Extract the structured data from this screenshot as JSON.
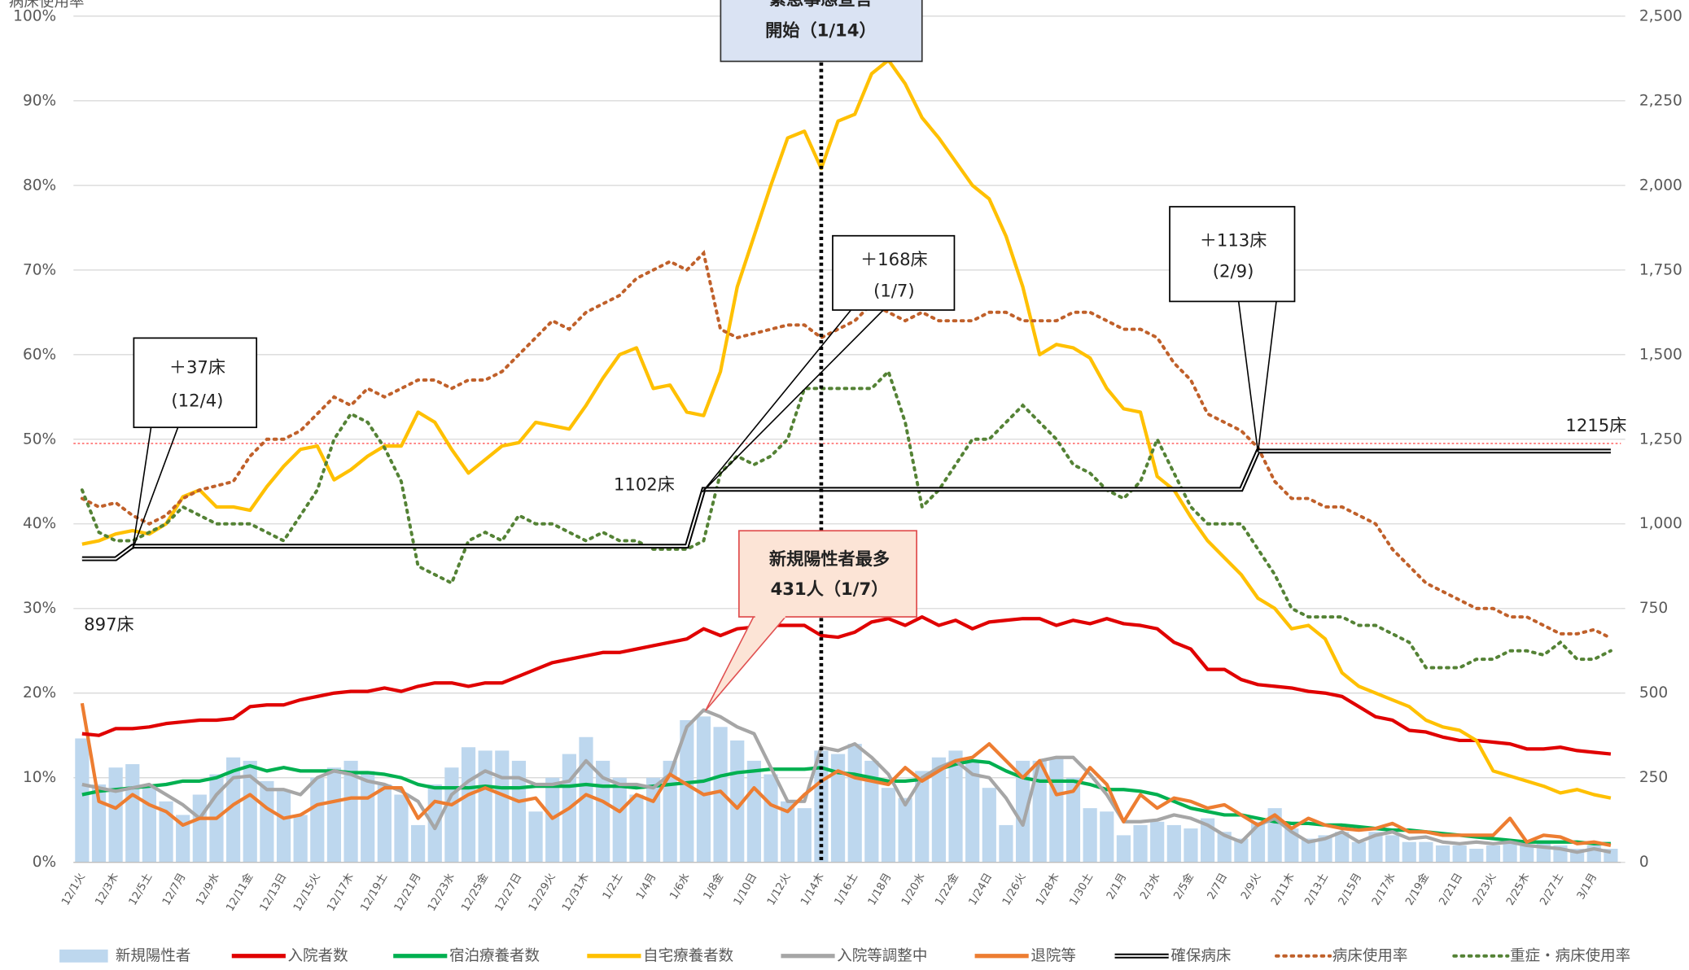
{
  "chart_data": {
    "type": "combo",
    "y_title": "病床使用率",
    "categories": [
      "12/1火",
      null,
      "12/3木",
      null,
      "12/5土",
      null,
      "12/7月",
      null,
      "12/9水",
      null,
      "12/11金",
      null,
      "12/13日",
      null,
      "12/15火",
      null,
      "12/17木",
      null,
      "12/19土",
      null,
      "12/21月",
      null,
      "12/23水",
      null,
      "12/25金",
      null,
      "12/27日",
      null,
      "12/29火",
      null,
      "12/31木",
      null,
      "1/2土",
      null,
      "1/4月",
      null,
      "1/6水",
      null,
      "1/8金",
      null,
      "1/10日",
      null,
      "1/12火",
      null,
      "1/14木",
      null,
      "1/16土",
      null,
      "1/18月",
      null,
      "1/20水",
      null,
      "1/22金",
      null,
      "1/24日",
      null,
      "1/26火",
      null,
      "1/28木",
      null,
      "1/30土",
      null,
      "2/1月",
      null,
      "2/3水",
      null,
      "2/5金",
      null,
      "2/7日",
      null,
      "2/9火",
      null,
      "2/11木",
      null,
      "2/13土",
      null,
      "2/15月",
      null,
      "2/17水",
      null,
      "2/19金",
      null,
      "2/21日",
      null,
      "2/23火",
      null,
      "2/25木",
      null,
      "2/27土",
      null,
      "3/1月",
      null
    ],
    "ylim": [
      0,
      100
    ],
    "yticks": [
      {
        "value": 0,
        "label": "0%"
      },
      {
        "value": 10,
        "label": "10%"
      },
      {
        "value": 20,
        "label": "20%"
      },
      {
        "value": 30,
        "label": "30%"
      },
      {
        "value": 40,
        "label": "40%"
      },
      {
        "value": 50,
        "label": "50%"
      },
      {
        "value": 60,
        "label": "60%"
      },
      {
        "value": 70,
        "label": "70%"
      },
      {
        "value": 80,
        "label": "80%"
      },
      {
        "value": 90,
        "label": "90%"
      },
      {
        "value": 100,
        "label": "100%"
      }
    ],
    "y2lim": [
      0,
      2500
    ],
    "y2ticks": [
      0,
      250,
      500,
      750,
      {
        "value": 1000,
        "label": "1,000"
      },
      {
        "value": 1250,
        "label": "1,250"
      },
      {
        "value": 1500,
        "label": "1,500"
      },
      {
        "value": 1750,
        "label": "1,750"
      },
      {
        "value": 2000,
        "label": "2,000"
      },
      {
        "value": 2250,
        "label": "2,250"
      },
      {
        "value": 2500,
        "label": "2,500"
      }
    ],
    "grid": true,
    "reference_line": {
      "value": 49.5,
      "color": "#ff5050"
    },
    "series": [
      {
        "name": "新規陽性者",
        "type": "bar",
        "axis": "y2",
        "color": "#bdd7ee",
        "values": [
          366,
          230,
          280,
          290,
          230,
          180,
          140,
          200,
          260,
          310,
          300,
          240,
          210,
          140,
          250,
          280,
          300,
          270,
          230,
          200,
          110,
          230,
          280,
          340,
          330,
          330,
          300,
          150,
          250,
          320,
          370,
          300,
          250,
          200,
          250,
          300,
          420,
          431,
          400,
          360,
          300,
          260,
          180,
          160,
          330,
          320,
          350,
          300,
          220,
          190,
          270,
          310,
          330,
          300,
          220,
          110,
          300,
          300,
          310,
          250,
          160,
          150,
          80,
          110,
          120,
          110,
          100,
          130,
          90,
          70,
          120,
          160,
          100,
          70,
          80,
          90,
          60,
          90,
          80,
          60,
          60,
          50,
          50,
          40,
          50,
          60,
          50,
          60,
          50,
          40,
          50,
          40
        ]
      },
      {
        "name": "入院者数",
        "type": "line",
        "axis": "y2",
        "color": "#e00000",
        "values": [
          380,
          375,
          395,
          395,
          400,
          410,
          415,
          420,
          420,
          425,
          460,
          465,
          465,
          480,
          490,
          500,
          505,
          505,
          515,
          505,
          520,
          530,
          530,
          520,
          530,
          530,
          550,
          570,
          590,
          600,
          610,
          620,
          620,
          630,
          640,
          650,
          660,
          690,
          670,
          690,
          695,
          700,
          700,
          700,
          670,
          665,
          680,
          710,
          720,
          700,
          725,
          700,
          715,
          690,
          710,
          715,
          720,
          720,
          700,
          715,
          705,
          720,
          705,
          700,
          690,
          650,
          630,
          570,
          570,
          540,
          525,
          520,
          515,
          505,
          500,
          490,
          460,
          430,
          420,
          390,
          385,
          370,
          360,
          360,
          355,
          350,
          335,
          335,
          340,
          330,
          325,
          320
        ]
      },
      {
        "name": "宿泊療養者数",
        "type": "line",
        "axis": "y2",
        "color": "#00b050",
        "values": [
          200,
          210,
          215,
          220,
          225,
          230,
          240,
          240,
          250,
          270,
          285,
          270,
          280,
          270,
          270,
          270,
          265,
          265,
          260,
          250,
          230,
          220,
          220,
          220,
          225,
          220,
          220,
          225,
          225,
          225,
          230,
          225,
          225,
          220,
          225,
          230,
          235,
          240,
          255,
          265,
          270,
          275,
          275,
          275,
          280,
          265,
          260,
          250,
          240,
          240,
          245,
          275,
          290,
          300,
          295,
          270,
          250,
          240,
          240,
          240,
          230,
          215,
          215,
          210,
          200,
          180,
          160,
          150,
          140,
          140,
          130,
          120,
          115,
          115,
          110,
          110,
          105,
          100,
          95,
          95,
          90,
          85,
          80,
          75,
          70,
          65,
          60,
          60,
          60,
          60,
          55,
          55
        ]
      },
      {
        "name": "自宅療養者数",
        "type": "line",
        "axis": "y2",
        "color": "#ffc000",
        "values": [
          940,
          950,
          970,
          980,
          970,
          1000,
          1080,
          1100,
          1050,
          1050,
          1040,
          1110,
          1170,
          1220,
          1230,
          1130,
          1160,
          1200,
          1230,
          1230,
          1330,
          1300,
          1220,
          1150,
          1190,
          1230,
          1240,
          1300,
          1290,
          1280,
          1350,
          1430,
          1500,
          1520,
          1400,
          1410,
          1330,
          1320,
          1450,
          1700,
          1850,
          2000,
          2140,
          2160,
          2050,
          2190,
          2210,
          2330,
          2370,
          2300,
          2200,
          2140,
          2070,
          2000,
          1960,
          1850,
          1700,
          1500,
          1530,
          1520,
          1490,
          1400,
          1340,
          1330,
          1140,
          1100,
          1020,
          950,
          900,
          850,
          780,
          750,
          690,
          700,
          660,
          560,
          520,
          500,
          480,
          460,
          420,
          400,
          390,
          360,
          270,
          255,
          240,
          225,
          205,
          215,
          200,
          190
        ]
      },
      {
        "name": "入院等調整中",
        "type": "line",
        "axis": "y2",
        "color": "#a6a6a6",
        "values": [
          230,
          220,
          210,
          220,
          230,
          200,
          170,
          130,
          200,
          250,
          255,
          215,
          215,
          200,
          250,
          270,
          260,
          240,
          230,
          210,
          180,
          100,
          200,
          240,
          270,
          250,
          250,
          230,
          230,
          240,
          300,
          250,
          230,
          230,
          220,
          260,
          400,
          450,
          430,
          400,
          380,
          280,
          180,
          180,
          340,
          330,
          350,
          310,
          260,
          170,
          250,
          280,
          300,
          260,
          250,
          190,
          110,
          300,
          310,
          310,
          260,
          200,
          120,
          120,
          125,
          140,
          130,
          110,
          80,
          60,
          110,
          130,
          90,
          60,
          70,
          90,
          60,
          80,
          90,
          70,
          75,
          60,
          55,
          60,
          55,
          60,
          50,
          45,
          40,
          30,
          40,
          30
        ]
      },
      {
        "name": "退院等",
        "type": "line",
        "axis": "y2",
        "color": "#ed7d31",
        "values": [
          470,
          180,
          160,
          200,
          170,
          150,
          110,
          130,
          130,
          170,
          200,
          160,
          130,
          140,
          170,
          180,
          190,
          190,
          220,
          220,
          130,
          180,
          170,
          200,
          220,
          200,
          180,
          190,
          130,
          160,
          200,
          180,
          150,
          200,
          180,
          260,
          230,
          200,
          210,
          160,
          220,
          170,
          150,
          200,
          240,
          270,
          250,
          240,
          230,
          280,
          240,
          270,
          300,
          310,
          350,
          300,
          250,
          300,
          200,
          210,
          280,
          230,
          120,
          200,
          160,
          190,
          180,
          160,
          170,
          140,
          110,
          140,
          100,
          130,
          110,
          100,
          95,
          100,
          115,
          90,
          90,
          80,
          80,
          80,
          80,
          130,
          60,
          80,
          75,
          55,
          60,
          50
        ]
      },
      {
        "name": "確保病床",
        "type": "line",
        "style": "double",
        "axis": "y2",
        "color": "#000000",
        "values": [
          897,
          897,
          897,
          934,
          934,
          934,
          934,
          934,
          934,
          934,
          934,
          934,
          934,
          934,
          934,
          934,
          934,
          934,
          934,
          934,
          934,
          934,
          934,
          934,
          934,
          934,
          934,
          934,
          934,
          934,
          934,
          934,
          934,
          934,
          934,
          934,
          934,
          1102,
          1102,
          1102,
          1102,
          1102,
          1102,
          1102,
          1102,
          1102,
          1102,
          1102,
          1102,
          1102,
          1102,
          1102,
          1102,
          1102,
          1102,
          1102,
          1102,
          1102,
          1102,
          1102,
          1102,
          1102,
          1102,
          1102,
          1102,
          1102,
          1102,
          1102,
          1102,
          1102,
          1215,
          1215,
          1215,
          1215,
          1215,
          1215,
          1215,
          1215,
          1215,
          1215,
          1215,
          1215,
          1215,
          1215,
          1215,
          1215,
          1215,
          1215,
          1215,
          1215,
          1215,
          1215
        ]
      },
      {
        "name": "病床使用率",
        "type": "line",
        "style": "dotted",
        "color": "#c0602a",
        "values": [
          43,
          42,
          42.5,
          41,
          40,
          41,
          43,
          44,
          44.5,
          45,
          48,
          50,
          50,
          51,
          53,
          55,
          54,
          56,
          55,
          56,
          57,
          57,
          56,
          57,
          57,
          58,
          60,
          62,
          64,
          63,
          65,
          66,
          67,
          69,
          70,
          71,
          70,
          72,
          63,
          62,
          62.5,
          63,
          63.5,
          63.5,
          62,
          63,
          64,
          66,
          65,
          64,
          65,
          64,
          64,
          64,
          65,
          65,
          64,
          64,
          64,
          65,
          65,
          64,
          63,
          63,
          62,
          59,
          57,
          53,
          52,
          51,
          49,
          45,
          43,
          43,
          42,
          42,
          41,
          40,
          37,
          35,
          33,
          32,
          31,
          30,
          30,
          29,
          29,
          28,
          27,
          27,
          27.5,
          26.5
        ]
      },
      {
        "name": "重症・病床使用率",
        "type": "line",
        "style": "dotted",
        "color": "#548235",
        "values": [
          44,
          39,
          38,
          38,
          39,
          40,
          42,
          41,
          40,
          40,
          40,
          39,
          38,
          41,
          44,
          50,
          53,
          52,
          49,
          45,
          35,
          34,
          33,
          38,
          39,
          38,
          41,
          40,
          40,
          39,
          38,
          39,
          38,
          38,
          37,
          37,
          37,
          38,
          46,
          48,
          47,
          48,
          50,
          56,
          56,
          56,
          56,
          56,
          58,
          52,
          42,
          44,
          47,
          50,
          50,
          52,
          54,
          52,
          50,
          47,
          46,
          44,
          43,
          45,
          50,
          46,
          42,
          40,
          40,
          40,
          37,
          34,
          30,
          29,
          29,
          29,
          28,
          28,
          27,
          26,
          23,
          23,
          23,
          24,
          24,
          25,
          25,
          24.5,
          26,
          24,
          24,
          25
        ]
      }
    ],
    "annotations": [
      {
        "lines": [
          "緊急事態宣言",
          "開始（1/14）"
        ]
      },
      {
        "lines": [
          "＋37床",
          "(12/4)"
        ]
      },
      {
        "lines": [
          "＋168床",
          "(1/7)"
        ]
      },
      {
        "lines": [
          "＋113床",
          "(2/9)"
        ]
      },
      {
        "lines": [
          "新規陽性者最多",
          "431人（1/7）"
        ]
      },
      {
        "lines": [
          "897床"
        ]
      },
      {
        "lines": [
          "1102床"
        ]
      },
      {
        "lines": [
          "1215床"
        ]
      }
    ]
  }
}
